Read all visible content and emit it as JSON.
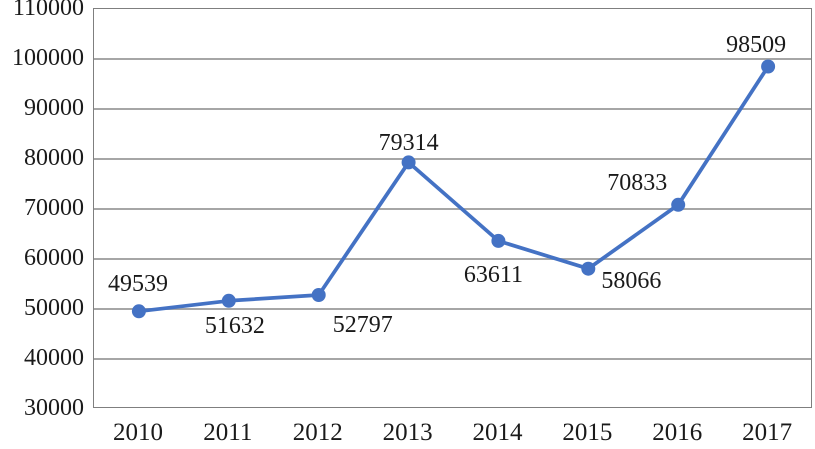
{
  "chart_data": {
    "type": "line",
    "title": "",
    "xlabel": "",
    "ylabel": "",
    "categories": [
      "2010",
      "2011",
      "2012",
      "2013",
      "2014",
      "2015",
      "2016",
      "2017"
    ],
    "values": [
      49539,
      51632,
      52797,
      79314,
      63611,
      58066,
      70833,
      98509
    ],
    "data_labels": [
      "49539",
      "51632",
      "52797",
      "79314",
      "63611",
      "58066",
      "70833",
      "98509"
    ],
    "label_placement": [
      "above",
      "below",
      "below-right",
      "above",
      "below",
      "right-below",
      "above-left",
      "above"
    ],
    "ylim": [
      30000,
      110000
    ],
    "ytick_step": 10000,
    "ytick_labels": [
      "110000",
      "100000",
      "90000",
      "80000",
      "70000",
      "60000",
      "50000",
      "40000",
      "30000"
    ],
    "grid": "horizontal",
    "legend": "none",
    "colors": {
      "line": "#4472C4",
      "marker": "#4472C4",
      "gridline": "#A6A6A6",
      "axis_border": "#7F7F7F",
      "text": "#1A1A1A",
      "background": "#FFFFFF"
    }
  }
}
